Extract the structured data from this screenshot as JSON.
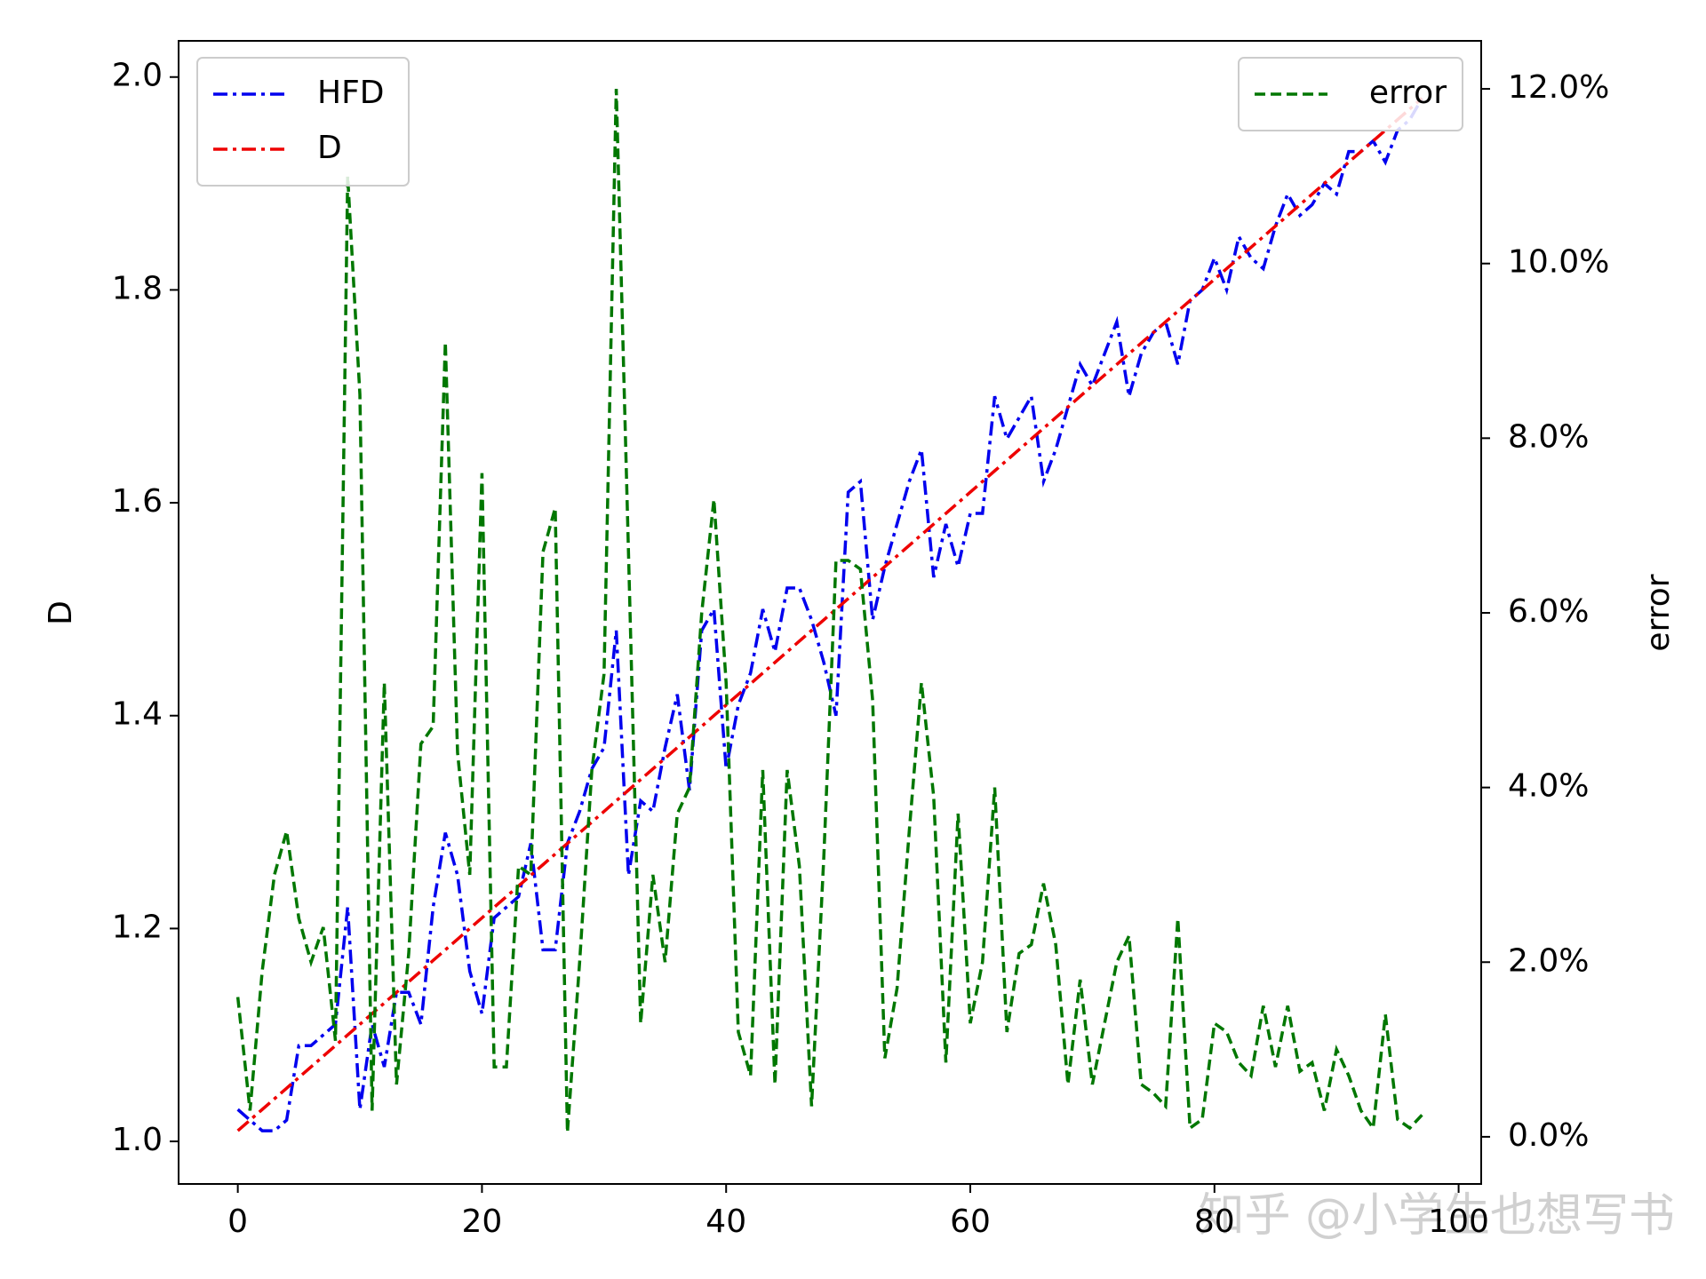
{
  "chart_data": {
    "type": "line",
    "watermark": "知乎 @小学生也想写书",
    "ylabel": "D",
    "y2label": "error",
    "x": [
      0,
      1,
      2,
      3,
      4,
      5,
      6,
      7,
      8,
      9,
      10,
      11,
      12,
      13,
      14,
      15,
      16,
      17,
      18,
      19,
      20,
      21,
      22,
      23,
      24,
      25,
      26,
      27,
      28,
      29,
      30,
      31,
      32,
      33,
      34,
      35,
      36,
      37,
      38,
      39,
      40,
      41,
      42,
      43,
      44,
      45,
      46,
      47,
      48,
      49,
      50,
      51,
      52,
      53,
      54,
      55,
      56,
      57,
      58,
      59,
      60,
      61,
      62,
      63,
      64,
      65,
      66,
      67,
      68,
      69,
      70,
      71,
      72,
      73,
      74,
      75,
      76,
      77,
      78,
      79,
      80,
      81,
      82,
      83,
      84,
      85,
      86,
      87,
      88,
      89,
      90,
      91,
      92,
      93,
      94,
      95,
      96,
      97
    ],
    "xlim": [
      -4.85,
      101.85
    ],
    "xticks": [
      0,
      20,
      40,
      60,
      80,
      100
    ],
    "ylim": [
      0.96,
      2.034
    ],
    "yticks": [
      {
        "value": 1,
        "label": "1.0"
      },
      1.2,
      1.4,
      1.6,
      1.8,
      {
        "value": 2,
        "label": "2.0"
      }
    ],
    "y2lim": [
      -0.54,
      12.55
    ],
    "y2ticks": [
      {
        "value": 0,
        "label": "0.0%"
      },
      {
        "value": 2,
        "label": "2.0%"
      },
      {
        "value": 4,
        "label": "4.0%"
      },
      {
        "value": 6,
        "label": "6.0%"
      },
      {
        "value": 8,
        "label": "8.0%"
      },
      {
        "value": 10,
        "label": "10.0%"
      },
      {
        "value": 12,
        "label": "12.0%"
      }
    ],
    "legend": "upper left",
    "legend2": "upper right",
    "series": [
      {
        "name": "HFD",
        "color": "#0000ee",
        "linestyle": "dashdot",
        "axis": "y",
        "values": [
          1.03,
          1.02,
          1.01,
          1.01,
          1.02,
          1.09,
          1.09,
          1.1,
          1.11,
          1.22,
          1.03,
          1.11,
          1.07,
          1.14,
          1.14,
          1.11,
          1.22,
          1.29,
          1.25,
          1.16,
          1.12,
          1.21,
          1.22,
          1.23,
          1.28,
          1.18,
          1.18,
          1.28,
          1.31,
          1.35,
          1.37,
          1.48,
          1.25,
          1.32,
          1.31,
          1.37,
          1.42,
          1.33,
          1.48,
          1.5,
          1.35,
          1.41,
          1.44,
          1.5,
          1.46,
          1.52,
          1.52,
          1.49,
          1.45,
          1.4,
          1.61,
          1.62,
          1.49,
          1.54,
          1.58,
          1.62,
          1.65,
          1.53,
          1.58,
          1.54,
          1.59,
          1.59,
          1.7,
          1.66,
          1.68,
          1.7,
          1.62,
          1.65,
          1.69,
          1.73,
          1.71,
          1.74,
          1.77,
          1.7,
          1.74,
          1.76,
          1.77,
          1.73,
          1.79,
          1.8,
          1.83,
          1.8,
          1.85,
          1.83,
          1.82,
          1.86,
          1.89,
          1.87,
          1.88,
          1.9,
          1.89,
          1.93,
          1.93,
          1.94,
          1.92,
          1.95,
          1.96,
          1.98
        ]
      },
      {
        "name": "D",
        "color": "#ee0000",
        "linestyle": "dashdot",
        "axis": "y",
        "values": [
          1.01,
          1.02,
          1.03,
          1.04,
          1.05,
          1.06,
          1.07,
          1.08,
          1.09,
          1.1,
          1.11,
          1.12,
          1.13,
          1.14,
          1.15,
          1.16,
          1.17,
          1.18,
          1.19,
          1.2,
          1.21,
          1.22,
          1.23,
          1.24,
          1.25,
          1.26,
          1.27,
          1.28,
          1.29,
          1.3,
          1.31,
          1.32,
          1.33,
          1.34,
          1.35,
          1.36,
          1.37,
          1.38,
          1.39,
          1.4,
          1.41,
          1.42,
          1.43,
          1.44,
          1.45,
          1.46,
          1.47,
          1.48,
          1.49,
          1.5,
          1.51,
          1.52,
          1.53,
          1.54,
          1.55,
          1.56,
          1.57,
          1.58,
          1.59,
          1.6,
          1.61,
          1.62,
          1.63,
          1.64,
          1.65,
          1.66,
          1.67,
          1.68,
          1.69,
          1.7,
          1.71,
          1.72,
          1.73,
          1.74,
          1.75,
          1.76,
          1.77,
          1.78,
          1.79,
          1.8,
          1.81,
          1.82,
          1.83,
          1.84,
          1.85,
          1.86,
          1.87,
          1.88,
          1.89,
          1.9,
          1.91,
          1.92,
          1.93,
          1.94,
          1.95,
          1.96,
          1.97,
          1.98
        ]
      },
      {
        "name": "error",
        "color": "#007700",
        "linestyle": "dashed",
        "axis": "y2",
        "values": [
          1.6,
          0.3,
          1.9,
          3.0,
          3.5,
          2.5,
          2.0,
          2.4,
          1.1,
          11.0,
          8.5,
          0.3,
          5.2,
          0.6,
          2.1,
          4.5,
          4.7,
          9.1,
          4.4,
          3.0,
          7.6,
          0.8,
          0.8,
          3.1,
          3.0,
          6.7,
          7.2,
          0.05,
          2.0,
          4.2,
          5.3,
          12.0,
          6.7,
          1.3,
          3.0,
          2.0,
          3.7,
          4.0,
          6.0,
          7.3,
          5.2,
          1.2,
          0.7,
          4.2,
          0.6,
          4.2,
          3.1,
          0.35,
          3.2,
          6.6,
          6.6,
          6.5,
          5.0,
          0.9,
          1.7,
          3.5,
          5.2,
          3.9,
          0.85,
          3.7,
          1.3,
          2.0,
          4.0,
          1.2,
          2.1,
          2.2,
          2.9,
          2.2,
          0.6,
          1.8,
          0.6,
          1.3,
          2.0,
          2.3,
          0.6,
          0.5,
          0.35,
          2.5,
          0.1,
          0.2,
          1.3,
          1.2,
          0.85,
          0.7,
          1.5,
          0.8,
          1.5,
          0.75,
          0.85,
          0.3,
          1.0,
          0.7,
          0.3,
          0.1,
          1.4,
          0.2,
          0.1,
          0.25
        ]
      }
    ]
  }
}
